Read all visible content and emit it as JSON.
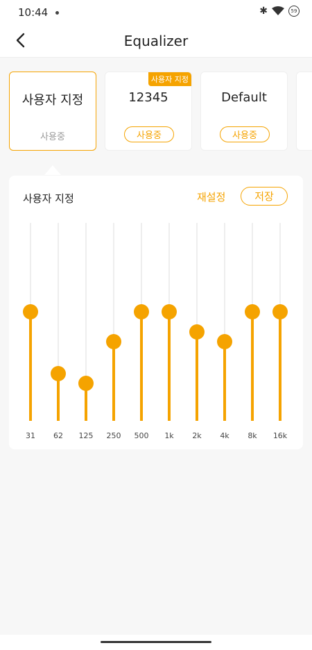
{
  "status_bar": {
    "time": "10:44",
    "battery": "59"
  },
  "app_bar": {
    "title": "Equalizer"
  },
  "presets": [
    {
      "title": "사용자 지정",
      "status": "사용중",
      "active": true
    },
    {
      "title": "12345",
      "button": "사용중",
      "tag": "사용자 지정"
    },
    {
      "title": "Default",
      "button": "사용중"
    }
  ],
  "equalizer": {
    "title": "사용자 지정",
    "reset_label": "재설정",
    "save_label": "저장",
    "accent_color": "#f5a300",
    "bands": [
      {
        "freq": "31",
        "level": 0.55
      },
      {
        "freq": "62",
        "level": 0.24
      },
      {
        "freq": "125",
        "level": 0.19
      },
      {
        "freq": "250",
        "level": 0.4
      },
      {
        "freq": "500",
        "level": 0.55
      },
      {
        "freq": "1k",
        "level": 0.55
      },
      {
        "freq": "2k",
        "level": 0.45
      },
      {
        "freq": "4k",
        "level": 0.4
      },
      {
        "freq": "8k",
        "level": 0.55
      },
      {
        "freq": "16k",
        "level": 0.55
      }
    ]
  }
}
